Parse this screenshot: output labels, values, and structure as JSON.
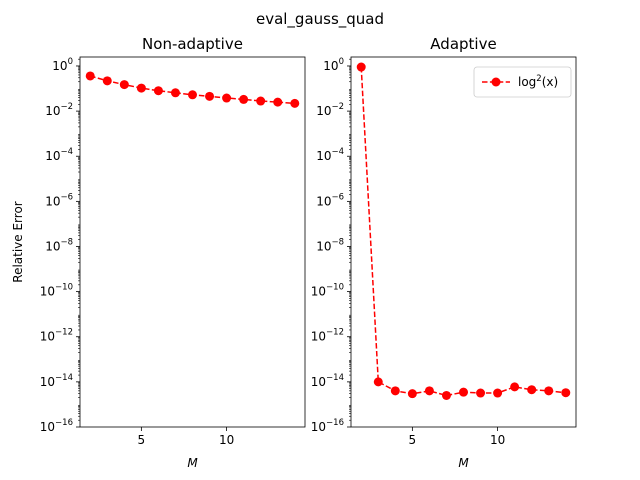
{
  "figure": {
    "suptitle": "eval_gauss_quad"
  },
  "colors": {
    "series": "#ff0000",
    "axes": "#000000",
    "background": "#ffffff"
  },
  "chart_data": [
    {
      "type": "line",
      "title": "Non-adaptive",
      "xlabel": "M",
      "ylabel": "Relative Error",
      "yscale": "log",
      "xlim": [
        1.4,
        14.6
      ],
      "ylim": [
        1e-16,
        2.5
      ],
      "xticks": [
        5,
        10
      ],
      "yticks": [
        {
          "exp": "0",
          "value": 1
        },
        {
          "exp": "−2",
          "value": 0.01
        },
        {
          "exp": "−4",
          "value": 0.0001
        },
        {
          "exp": "−6",
          "value": 1e-06
        },
        {
          "exp": "−8",
          "value": 1e-08
        },
        {
          "exp": "−10",
          "value": 1e-10
        },
        {
          "exp": "−12",
          "value": 1e-12
        },
        {
          "exp": "−14",
          "value": 1e-14
        },
        {
          "exp": "−16",
          "value": 1e-16
        }
      ],
      "grid": false,
      "series": [
        {
          "style": "dashed-circle",
          "color": "#ff0000",
          "x": [
            2,
            3,
            4,
            5,
            6,
            7,
            8,
            9,
            10,
            11,
            12,
            13,
            14
          ],
          "y": [
            0.36,
            0.22,
            0.15,
            0.105,
            0.08,
            0.065,
            0.053,
            0.045,
            0.038,
            0.033,
            0.028,
            0.025,
            0.022
          ]
        }
      ]
    },
    {
      "type": "line",
      "title": "Adaptive",
      "xlabel": "M",
      "ylabel": "",
      "yscale": "log",
      "xlim": [
        1.4,
        14.6
      ],
      "ylim": [
        1e-16,
        2.5
      ],
      "xticks": [
        5,
        10
      ],
      "yticks": [
        {
          "exp": "0",
          "value": 1
        },
        {
          "exp": "−2",
          "value": 0.01
        },
        {
          "exp": "−4",
          "value": 0.0001
        },
        {
          "exp": "−6",
          "value": 1e-06
        },
        {
          "exp": "−8",
          "value": 1e-08
        },
        {
          "exp": "−10",
          "value": 1e-10
        },
        {
          "exp": "−12",
          "value": 1e-12
        },
        {
          "exp": "−14",
          "value": 1e-14
        },
        {
          "exp": "−16",
          "value": 1e-16
        }
      ],
      "grid": false,
      "legend": {
        "placement": "top-right",
        "label_base": "log",
        "label_sup": "2",
        "label_arg": "(x)"
      },
      "series": [
        {
          "style": "dashed-circle",
          "color": "#ff0000",
          "x": [
            2,
            3,
            4,
            5,
            6,
            7,
            8,
            9,
            10,
            11,
            12,
            13,
            14
          ],
          "y": [
            0.9,
            1e-14,
            4e-15,
            3e-15,
            4e-15,
            2.5e-15,
            3.5e-15,
            3.2e-15,
            3.2e-15,
            6e-15,
            4.5e-15,
            4e-15,
            3.3e-15
          ]
        }
      ]
    }
  ]
}
